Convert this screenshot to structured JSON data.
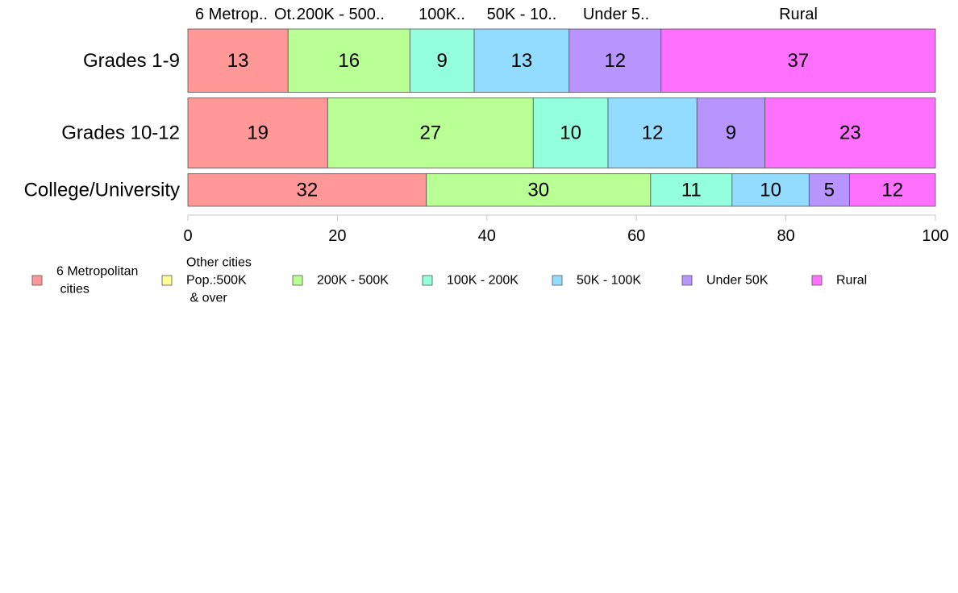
{
  "chart_data": {
    "type": "bar",
    "orientation": "horizontal",
    "stacked": true,
    "percent": true,
    "categories": [
      "Grades 1-9",
      "Grades 10-12",
      "College/University"
    ],
    "series": [
      {
        "name": "6 Metropolitan\n cities",
        "short_label": "6 Metrop..",
        "color": "#ff9896",
        "values": [
          13.4,
          18.7,
          31.9
        ]
      },
      {
        "name": "Other cities\nPop.:500K\n & over",
        "short_label": "Ot..",
        "color": "#ffff99",
        "values": [
          0,
          0,
          0
        ]
      },
      {
        "name": "200K - 500K",
        "short_label": "200K - 500..",
        "color": "#b8ff94",
        "values": [
          16.3,
          27.5,
          30.0
        ]
      },
      {
        "name": "100K - 200K",
        "short_label": "100K..",
        "color": "#94ffdc",
        "values": [
          8.6,
          10.0,
          10.9
        ]
      },
      {
        "name": "50K - 100K",
        "short_label": "50K - 10..",
        "color": "#94dcff",
        "values": [
          12.7,
          11.9,
          10.3
        ]
      },
      {
        "name": "Under 50K",
        "short_label": "Under 5..",
        "color": "#b894ff",
        "values": [
          12.3,
          9.1,
          5.4
        ]
      },
      {
        "name": "Rural",
        "short_label": "Rural",
        "color": "#ff70ff",
        "values": [
          36.7,
          22.8,
          11.5
        ]
      }
    ],
    "data_labels": [
      [
        "13",
        "",
        "16",
        "9",
        "13",
        "12",
        "37"
      ],
      [
        "19",
        "",
        "27",
        "10",
        "12",
        "9",
        "23"
      ],
      [
        "32",
        "",
        "30",
        "11",
        "10",
        "5",
        "12"
      ]
    ],
    "row_weights": [
      37,
      41,
      19
    ],
    "xlim": [
      0,
      100
    ],
    "xticks": [
      0,
      20,
      40,
      60,
      80,
      100
    ],
    "title": "",
    "xlabel": "",
    "ylabel": "",
    "grid": false,
    "legend_position": "bottom",
    "top_labels_row": 0
  }
}
